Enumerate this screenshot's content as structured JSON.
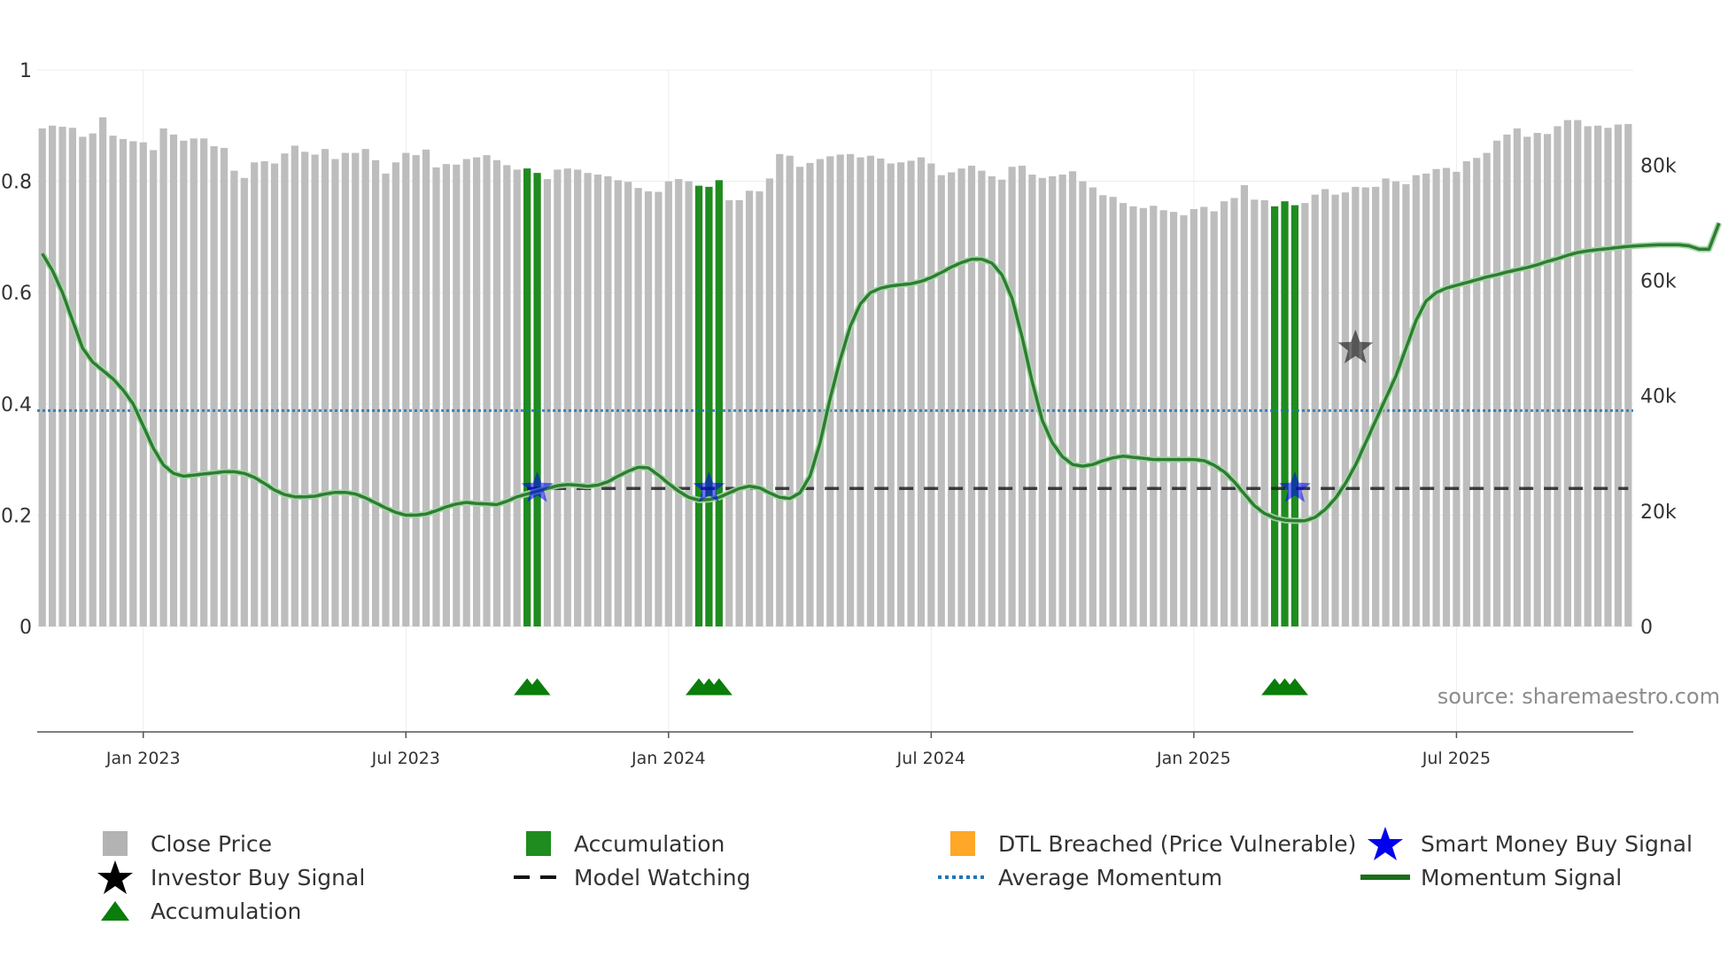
{
  "chart_data": {
    "type": "bar+line",
    "source_text": "source: sharemaestro.com",
    "left_axis": {
      "ticks": [
        "0",
        "0.2",
        "0.4",
        "0.6",
        "0.8",
        "1"
      ],
      "range": [
        0,
        1
      ]
    },
    "right_axis": {
      "ticks": [
        "0",
        "20k",
        "40k",
        "60k",
        "80k"
      ],
      "range": [
        0,
        96500
      ]
    },
    "x_ticks": [
      "Jan 2023",
      "Jul 2023",
      "Jan 2024",
      "Jul 2024",
      "Jan 2025",
      "Jul 2025"
    ],
    "x_tick_weeks": [
      10,
      36,
      62,
      88,
      114,
      140
    ],
    "close_price": [
      89.5,
      90.0,
      89.8,
      89.6,
      88.0,
      88.6,
      91.5,
      88.2,
      87.6,
      87.2,
      87.0,
      85.6,
      89.5,
      88.4,
      87.3,
      87.7,
      87.7,
      86.3,
      86.0,
      81.9,
      80.6,
      83.4,
      83.6,
      83.2,
      85.0,
      86.4,
      85.3,
      84.8,
      85.8,
      84.0,
      85.1,
      85.1,
      85.8,
      83.8,
      81.4,
      83.4,
      85.1,
      84.7,
      85.7,
      82.5,
      83.1,
      83.0,
      84.0,
      84.3,
      84.7,
      83.8,
      82.9,
      82.1,
      82.3,
      81.5,
      80.4,
      82.1,
      82.3,
      82.1,
      81.5,
      81.2,
      80.9,
      80.2,
      79.9,
      78.8,
      78.2,
      78.1,
      80.0,
      80.4,
      80.0,
      79.2,
      79.0,
      80.2,
      76.6,
      76.6,
      78.3,
      78.2,
      80.5,
      84.9,
      84.6,
      82.6,
      83.3,
      84.0,
      84.5,
      84.8,
      84.9,
      84.3,
      84.6,
      84.1,
      83.2,
      83.4,
      83.7,
      84.3,
      83.2,
      81.1,
      81.6,
      82.3,
      82.8,
      81.9,
      80.9,
      80.3,
      82.6,
      82.8,
      81.2,
      80.6,
      80.9,
      81.2,
      81.8,
      80.0,
      78.9,
      77.5,
      77.2,
      76.1,
      75.5,
      75.2,
      75.6,
      74.8,
      74.5,
      73.9,
      75.0,
      75.4,
      74.6,
      76.4,
      77.0,
      79.3,
      76.7,
      76.6,
      75.5,
      76.4,
      75.7,
      76.1,
      77.6,
      78.6,
      77.6,
      78.0,
      79.0,
      78.9,
      79.0,
      80.5,
      80.0,
      79.5,
      81.1,
      81.4,
      82.2,
      82.4,
      81.7,
      83.6,
      84.2,
      85.1,
      87.3,
      88.4,
      89.5,
      88.0,
      88.7,
      88.5,
      89.9,
      91.0,
      91.0,
      89.9,
      90.0,
      89.6,
      90.2,
      90.3
    ],
    "accumulation_bars": [
      48,
      49,
      65,
      66,
      67,
      122,
      123,
      124
    ],
    "momentum_signal": [
      0.67,
      0.64,
      0.6,
      0.55,
      0.5,
      0.475,
      0.46,
      0.445,
      0.425,
      0.4,
      0.36,
      0.32,
      0.29,
      0.275,
      0.27,
      0.272,
      0.274,
      0.276,
      0.278,
      0.278,
      0.275,
      0.268,
      0.257,
      0.245,
      0.237,
      0.233,
      0.233,
      0.234,
      0.238,
      0.241,
      0.241,
      0.238,
      0.231,
      0.222,
      0.213,
      0.205,
      0.2,
      0.2,
      0.202,
      0.208,
      0.215,
      0.22,
      0.223,
      0.221,
      0.22,
      0.219,
      0.225,
      0.233,
      0.238,
      0.243,
      0.248,
      0.253,
      0.255,
      0.254,
      0.252,
      0.254,
      0.26,
      0.27,
      0.279,
      0.286,
      0.285,
      0.272,
      0.257,
      0.243,
      0.232,
      0.227,
      0.228,
      0.232,
      0.24,
      0.248,
      0.252,
      0.249,
      0.24,
      0.232,
      0.23,
      0.24,
      0.27,
      0.33,
      0.41,
      0.48,
      0.54,
      0.58,
      0.6,
      0.608,
      0.612,
      0.614,
      0.616,
      0.62,
      0.627,
      0.636,
      0.646,
      0.654,
      0.66,
      0.66,
      0.653,
      0.632,
      0.59,
      0.52,
      0.44,
      0.37,
      0.33,
      0.305,
      0.291,
      0.288,
      0.291,
      0.298,
      0.303,
      0.306,
      0.304,
      0.302,
      0.3,
      0.3,
      0.3,
      0.3,
      0.3,
      0.298,
      0.29,
      0.278,
      0.26,
      0.238,
      0.217,
      0.203,
      0.195,
      0.191,
      0.19,
      0.19,
      0.196,
      0.21,
      0.23,
      0.257,
      0.29,
      0.33,
      0.37,
      0.41,
      0.45,
      0.5,
      0.55,
      0.585,
      0.6,
      0.608,
      0.613,
      0.618,
      0.623,
      0.628,
      0.632,
      0.637,
      0.641,
      0.645,
      0.65,
      0.656,
      0.661,
      0.667,
      0.672,
      0.675,
      0.677,
      0.679,
      0.681,
      0.683,
      0.684,
      0.685,
      0.686,
      0.686,
      0.686,
      0.684,
      0.678,
      0.678,
      0.725
    ],
    "model_watching_value": 0.248,
    "model_watching_start_week": 48,
    "average_momentum_value": 0.388,
    "smart_money_buy_signals": [
      {
        "week": 49,
        "value": 0.248
      },
      {
        "week": 66,
        "value": 0.248
      },
      {
        "week": 124,
        "value": 0.248
      }
    ],
    "investor_buy_signals": [
      {
        "week": 130,
        "value": 0.5
      }
    ],
    "accumulation_markers": [
      48,
      49,
      65,
      66,
      67,
      122,
      123,
      124
    ],
    "colors": {
      "close_price": "#bdbdbd",
      "accumulation": "#1e8c1e",
      "dtl_breached": "#ffa500",
      "model_watching": "#222222",
      "average_momentum": "#1f77b4",
      "momentum_signal": "#2e7d32",
      "smart_money": "#0000ff",
      "investor": "#111111",
      "accumulation_marker": "#0a7d0a"
    }
  },
  "legend": [
    {
      "id": "close-price",
      "label": "Close Price",
      "symbol": "square",
      "color": "#b3b3b3"
    },
    {
      "id": "accumulation-bar",
      "label": "Accumulation",
      "symbol": "square",
      "color": "#1e8c1e"
    },
    {
      "id": "dtl-breached",
      "label": "DTL Breached (Price Vulnerable)",
      "symbol": "square",
      "color": "#ffa726"
    },
    {
      "id": "smart-money",
      "label": "Smart Money Buy Signal",
      "symbol": "star",
      "color": "#0000ee"
    },
    {
      "id": "investor-buy",
      "label": "Investor Buy Signal",
      "symbol": "star",
      "color": "#000000"
    },
    {
      "id": "model-watching",
      "label": "Model Watching",
      "symbol": "dash",
      "color": "#111111"
    },
    {
      "id": "average-momentum",
      "label": "Average Momentum",
      "symbol": "dot",
      "color": "#1f77b4"
    },
    {
      "id": "momentum-signal",
      "label": "Momentum Signal",
      "symbol": "line",
      "color": "#1a6e1a"
    },
    {
      "id": "accumulation-marker",
      "label": "Accumulation",
      "symbol": "triangle",
      "color": "#0a7d0a"
    }
  ]
}
